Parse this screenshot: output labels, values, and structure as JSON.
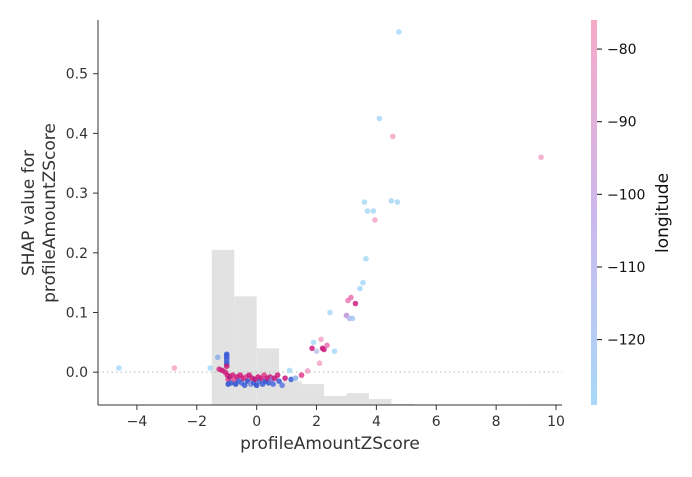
{
  "chart_data": {
    "type": "scatter",
    "title": "",
    "xlabel": "profileAmountZScore",
    "ylabel_line1": "SHAP value for",
    "ylabel_line2": "profileAmountZScore",
    "xlim": [
      -5.3,
      10.2
    ],
    "ylim": [
      -0.055,
      0.59
    ],
    "x_ticks": [
      {
        "value": -4,
        "label": "−4"
      },
      {
        "value": -2,
        "label": "−2"
      },
      {
        "value": 0,
        "label": "0"
      },
      {
        "value": 2,
        "label": "2"
      },
      {
        "value": 4,
        "label": "4"
      },
      {
        "value": 6,
        "label": "6"
      },
      {
        "value": 8,
        "label": "8"
      },
      {
        "value": 10,
        "label": "10"
      }
    ],
    "y_ticks": [
      {
        "value": 0.0,
        "label": "0.0"
      },
      {
        "value": 0.1,
        "label": "0.1"
      },
      {
        "value": 0.2,
        "label": "0.2"
      },
      {
        "value": 0.3,
        "label": "0.3"
      },
      {
        "value": 0.4,
        "label": "0.4"
      },
      {
        "value": 0.5,
        "label": "0.5"
      }
    ],
    "zero_reference_line": true,
    "grid": false,
    "histogram": {
      "color": "#e2e2e2",
      "bins": [
        {
          "x0": -1.5,
          "x1": -0.75,
          "top": 0.205
        },
        {
          "x0": -0.75,
          "x1": 0.0,
          "top": 0.127
        },
        {
          "x0": 0.0,
          "x1": 0.75,
          "top": 0.04
        },
        {
          "x0": 0.75,
          "x1": 1.5,
          "top": -0.015
        },
        {
          "x0": 1.5,
          "x1": 2.25,
          "top": -0.02
        },
        {
          "x0": 2.25,
          "x1": 3.0,
          "top": -0.04
        },
        {
          "x0": 3.0,
          "x1": 3.75,
          "top": -0.035
        },
        {
          "x0": 3.75,
          "x1": 4.5,
          "top": -0.045
        },
        {
          "x0": 4.5,
          "x1": 5.25,
          "top": -0.053
        },
        {
          "x0": 5.25,
          "x1": 6.0,
          "top": -0.054
        },
        {
          "x0": 6.0,
          "x1": 9.0,
          "top": -0.0545
        },
        {
          "x0": 9.0,
          "x1": 9.75,
          "top": -0.054
        }
      ]
    },
    "colorbar": {
      "label": "longitude",
      "range": [
        -129,
        -76
      ],
      "color_low": "#a8d8f8",
      "color_high": "#f7aac8",
      "ticks": [
        {
          "value": -80,
          "label": "−80"
        },
        {
          "value": -90,
          "label": "−90"
        },
        {
          "value": -100,
          "label": "−100"
        },
        {
          "value": -110,
          "label": "−110"
        },
        {
          "value": -120,
          "label": "−120"
        }
      ]
    },
    "points": [
      {
        "x": -4.6,
        "y": 0.007,
        "c": "#a8d8f8"
      },
      {
        "x": -2.75,
        "y": 0.007,
        "c": "#f4a6c8"
      },
      {
        "x": -1.55,
        "y": 0.007,
        "c": "#a8d8f8"
      },
      {
        "x": -1.3,
        "y": 0.025,
        "c": "#8ab0e8"
      },
      {
        "x": -1.25,
        "y": 0.005,
        "c": "#d02080"
      },
      {
        "x": -1.15,
        "y": 0.003,
        "c": "#c8187a"
      },
      {
        "x": -1.05,
        "y": 0.0,
        "c": "#d01a7c"
      },
      {
        "x": -1.0,
        "y": 0.03,
        "c": "#2a4fd0"
      },
      {
        "x": -1.0,
        "y": 0.026,
        "c": "#3a5cd8"
      },
      {
        "x": -1.0,
        "y": 0.022,
        "c": "#3a5cd8"
      },
      {
        "x": -1.0,
        "y": 0.018,
        "c": "#4a68dc"
      },
      {
        "x": -1.0,
        "y": 0.014,
        "c": "#3a5cd8"
      },
      {
        "x": -1.0,
        "y": 0.01,
        "c": "#c8187a"
      },
      {
        "x": -0.98,
        "y": -0.005,
        "c": "#d01a7c"
      },
      {
        "x": -0.95,
        "y": -0.012,
        "c": "#e03a8c"
      },
      {
        "x": -0.95,
        "y": -0.02,
        "c": "#2a4fd0"
      },
      {
        "x": -0.9,
        "y": -0.008,
        "c": "#b01878"
      },
      {
        "x": -0.85,
        "y": -0.018,
        "c": "#3a5cd8"
      },
      {
        "x": -0.8,
        "y": -0.005,
        "c": "#d01a7c"
      },
      {
        "x": -0.75,
        "y": -0.012,
        "c": "#e04a94"
      },
      {
        "x": -0.7,
        "y": -0.02,
        "c": "#2a4fd0"
      },
      {
        "x": -0.65,
        "y": -0.008,
        "c": "#c8187a"
      },
      {
        "x": -0.6,
        "y": -0.015,
        "c": "#3a5cd8"
      },
      {
        "x": -0.55,
        "y": -0.005,
        "c": "#d01a7c"
      },
      {
        "x": -0.5,
        "y": -0.018,
        "c": "#4a68dc"
      },
      {
        "x": -0.45,
        "y": -0.01,
        "c": "#c8187a"
      },
      {
        "x": -0.4,
        "y": -0.022,
        "c": "#3a5cd8"
      },
      {
        "x": -0.35,
        "y": -0.008,
        "c": "#e03a8c"
      },
      {
        "x": -0.3,
        "y": -0.015,
        "c": "#2a4fd0"
      },
      {
        "x": -0.25,
        "y": -0.005,
        "c": "#c8187a"
      },
      {
        "x": -0.2,
        "y": -0.02,
        "c": "#7a8cd8"
      },
      {
        "x": -0.15,
        "y": -0.01,
        "c": "#d01a7c"
      },
      {
        "x": -0.1,
        "y": -0.018,
        "c": "#3a5cd8"
      },
      {
        "x": -0.05,
        "y": -0.012,
        "c": "#b01878"
      },
      {
        "x": 0.0,
        "y": -0.022,
        "c": "#2a4fd0"
      },
      {
        "x": 0.05,
        "y": -0.008,
        "c": "#d01a7c"
      },
      {
        "x": 0.1,
        "y": -0.015,
        "c": "#4a68dc"
      },
      {
        "x": 0.15,
        "y": -0.01,
        "c": "#c8187a"
      },
      {
        "x": 0.2,
        "y": -0.02,
        "c": "#3a5cd8"
      },
      {
        "x": 0.25,
        "y": -0.005,
        "c": "#e03a8c"
      },
      {
        "x": 0.3,
        "y": -0.015,
        "c": "#2a4fd0"
      },
      {
        "x": 0.35,
        "y": -0.01,
        "c": "#c8187a"
      },
      {
        "x": 0.4,
        "y": -0.018,
        "c": "#3a5cd8"
      },
      {
        "x": 0.45,
        "y": -0.008,
        "c": "#d01a7c"
      },
      {
        "x": 0.5,
        "y": -0.012,
        "c": "#8a6cd0"
      },
      {
        "x": 0.55,
        "y": -0.02,
        "c": "#4a68dc"
      },
      {
        "x": 0.6,
        "y": -0.01,
        "c": "#c8187a"
      },
      {
        "x": 0.7,
        "y": -0.005,
        "c": "#d01a7c"
      },
      {
        "x": 0.75,
        "y": -0.015,
        "c": "#3a5cd8"
      },
      {
        "x": 0.85,
        "y": -0.022,
        "c": "#5a78e0"
      },
      {
        "x": 0.95,
        "y": -0.01,
        "c": "#c8187a"
      },
      {
        "x": 1.1,
        "y": 0.003,
        "c": "#a8d8f8"
      },
      {
        "x": 1.15,
        "y": -0.012,
        "c": "#3a5cd8"
      },
      {
        "x": 1.3,
        "y": -0.01,
        "c": "#8ab0e8"
      },
      {
        "x": 1.5,
        "y": -0.005,
        "c": "#e03a8c"
      },
      {
        "x": 1.7,
        "y": 0.002,
        "c": "#f0a0c8"
      },
      {
        "x": 1.85,
        "y": 0.04,
        "c": "#d02080"
      },
      {
        "x": 1.9,
        "y": 0.05,
        "c": "#a8d8f8"
      },
      {
        "x": 2.0,
        "y": 0.035,
        "c": "#c0c8f0"
      },
      {
        "x": 2.1,
        "y": 0.015,
        "c": "#f4a6c8"
      },
      {
        "x": 2.15,
        "y": 0.055,
        "c": "#f4a6c8"
      },
      {
        "x": 2.2,
        "y": 0.04,
        "c": "#c8187a"
      },
      {
        "x": 2.25,
        "y": 0.038,
        "c": "#d02080"
      },
      {
        "x": 2.35,
        "y": 0.045,
        "c": "#e870b0"
      },
      {
        "x": 2.45,
        "y": 0.1,
        "c": "#a8d8f8"
      },
      {
        "x": 2.6,
        "y": 0.035,
        "c": "#a8d8f8"
      },
      {
        "x": 3.0,
        "y": 0.095,
        "c": "#c090d8"
      },
      {
        "x": 3.05,
        "y": 0.12,
        "c": "#f07ab8"
      },
      {
        "x": 3.1,
        "y": 0.09,
        "c": "#b0b8f0"
      },
      {
        "x": 3.15,
        "y": 0.125,
        "c": "#e870b0"
      },
      {
        "x": 3.2,
        "y": 0.09,
        "c": "#a8c8f0"
      },
      {
        "x": 3.3,
        "y": 0.115,
        "c": "#d02080"
      },
      {
        "x": 3.45,
        "y": 0.14,
        "c": "#a8d8f8"
      },
      {
        "x": 3.55,
        "y": 0.15,
        "c": "#a8d8f8"
      },
      {
        "x": 3.6,
        "y": 0.285,
        "c": "#a8d8f8"
      },
      {
        "x": 3.65,
        "y": 0.19,
        "c": "#a8d8f8"
      },
      {
        "x": 3.7,
        "y": 0.27,
        "c": "#a8d8f8"
      },
      {
        "x": 3.9,
        "y": 0.27,
        "c": "#a8d8f8"
      },
      {
        "x": 3.95,
        "y": 0.255,
        "c": "#f4a6c8"
      },
      {
        "x": 4.1,
        "y": 0.425,
        "c": "#a8d8f8"
      },
      {
        "x": 4.5,
        "y": 0.287,
        "c": "#a8d8f8"
      },
      {
        "x": 4.55,
        "y": 0.395,
        "c": "#f4a6c8"
      },
      {
        "x": 4.7,
        "y": 0.285,
        "c": "#a8d8f8"
      },
      {
        "x": 4.75,
        "y": 0.57,
        "c": "#a8d8f8"
      },
      {
        "x": 9.5,
        "y": 0.36,
        "c": "#f4a6c8"
      }
    ]
  }
}
